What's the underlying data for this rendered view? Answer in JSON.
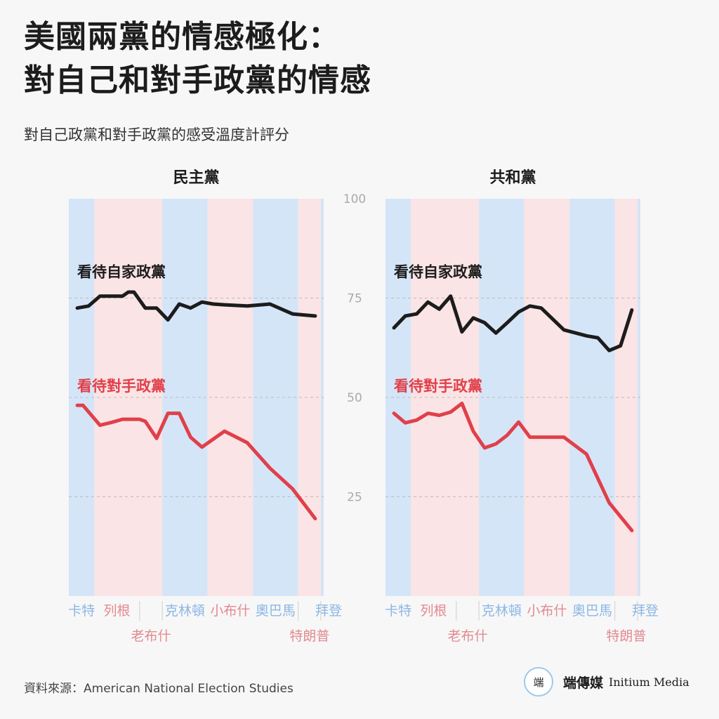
{
  "header": {
    "title_line1": "美國兩黨的情感極化：",
    "title_line2": "對自己和對手政黨的情感",
    "subtitle": "對自己政黨和對手政黨的感受溫度計評分"
  },
  "colors": {
    "own": "#1c1c1c",
    "opposing": "#e0404a",
    "dem_band": "#d5e5f8",
    "rep_band": "#fbe4e5",
    "dem_label": "#8cb7e6",
    "rep_label": "#e28a90",
    "grid": "#bbbbbb"
  },
  "presidencies": [
    {
      "name": "卡特",
      "party": "D",
      "start": 1977,
      "end": 1981,
      "row": 1
    },
    {
      "name": "列根",
      "party": "R",
      "start": 1981,
      "end": 1989,
      "row": 1
    },
    {
      "name": "老布什",
      "party": "R",
      "start": 1989,
      "end": 1993,
      "row": 2
    },
    {
      "name": "克林頓",
      "party": "D",
      "start": 1993,
      "end": 2001,
      "row": 1
    },
    {
      "name": "小布什",
      "party": "R",
      "start": 2001,
      "end": 2009,
      "row": 1
    },
    {
      "name": "奧巴馬",
      "party": "D",
      "start": 2009,
      "end": 2017,
      "row": 1
    },
    {
      "name": "特朗普",
      "party": "R",
      "start": 2017,
      "end": 2021,
      "row": 2
    },
    {
      "name": "拜登",
      "party": "D",
      "start": 2021,
      "end": 2021.5,
      "row": 1
    }
  ],
  "chart_data": [
    {
      "type": "line",
      "title": "民主黨",
      "ylim": [
        0,
        100
      ],
      "yticks": [
        25,
        50,
        75,
        100
      ],
      "grid": true,
      "series": [
        {
          "name": "看待自家政黨",
          "x": [
            1978,
            1980,
            1982,
            1984,
            1986,
            1987,
            1988,
            1990,
            1992,
            1994,
            1996,
            1998,
            2000,
            2002,
            2004,
            2008,
            2012,
            2016,
            2020
          ],
          "values": [
            72.5,
            73,
            75.5,
            75.5,
            75.5,
            76.5,
            76.5,
            72.5,
            72.5,
            69.5,
            73.5,
            72.5,
            74,
            73.5,
            73.3,
            73,
            73.5,
            71,
            70.5
          ]
        },
        {
          "name": "看待對手政黨",
          "x": [
            1978,
            1979,
            1982,
            1984,
            1986,
            1988,
            1989,
            1990,
            1992,
            1994,
            1996,
            1998,
            2000,
            2004,
            2008,
            2012,
            2016,
            2020
          ],
          "values": [
            48,
            48,
            43,
            43.7,
            44.5,
            44.5,
            44.5,
            44,
            39.7,
            46,
            46,
            40,
            37.5,
            41.5,
            38.6,
            32.2,
            27,
            19.5
          ]
        }
      ]
    },
    {
      "type": "line",
      "title": "共和黨",
      "ylim": [
        0,
        100
      ],
      "yticks": [
        25,
        50,
        75,
        100
      ],
      "grid": true,
      "series": [
        {
          "name": "看待自家政黨",
          "x": [
            1978,
            1980,
            1982,
            1984,
            1986,
            1988,
            1990,
            1992,
            1994,
            1996,
            1998,
            2000,
            2002,
            2004,
            2008,
            2012,
            2014,
            2016,
            2018,
            2020
          ],
          "values": [
            67.5,
            70.5,
            71,
            74,
            72.2,
            75.5,
            66.5,
            70,
            68.8,
            66.2,
            68.8,
            71.5,
            73,
            72.5,
            67,
            65.5,
            65,
            61.8,
            63,
            72
          ]
        },
        {
          "name": "看待對手政黨",
          "x": [
            1978,
            1980,
            1982,
            1984,
            1986,
            1988,
            1990,
            1992,
            1994,
            1996,
            1998,
            2000,
            2002,
            2004,
            2008,
            2012,
            2016,
            2020
          ],
          "values": [
            46,
            43.6,
            44.3,
            46,
            45.5,
            46.3,
            48.5,
            41.5,
            37.3,
            38.3,
            40.5,
            43.8,
            40,
            40,
            40,
            35.7,
            23.5,
            16.5
          ]
        }
      ]
    }
  ],
  "source": "資料來源：American National Election Studies",
  "brand": {
    "logo_glyph": "端",
    "zh": "端傳媒",
    "en": "Initium Media"
  }
}
